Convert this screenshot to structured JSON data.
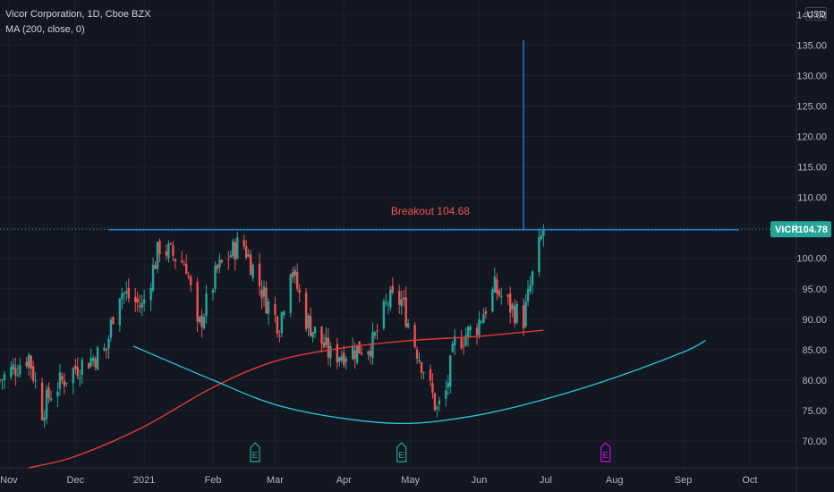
{
  "legend": {
    "title": "Vicor Corporation, 1D, Cboe BZX",
    "indicator": "MA (200, close, 0)"
  },
  "currency": "USD",
  "price_tag": {
    "symbol": "VICR",
    "value": "104.78",
    "color": "#26a69a"
  },
  "breakout": {
    "label": "Breakout 104.68",
    "level": 104.68,
    "line_color": "#2196f3",
    "label_color": "#ef5350"
  },
  "colors": {
    "up": "#26a69a",
    "down": "#ef5350",
    "ma": "#e53935",
    "cup": "#26c6da",
    "earnings_past": "#26a69a",
    "earnings_future": "#c511e0"
  },
  "chart_data": {
    "type": "candlestick",
    "x_ticks": [
      "Nov",
      "Dec",
      "2021",
      "Feb",
      "Mar",
      "Apr",
      "May",
      "Jun",
      "Jul",
      "Aug",
      "Sep",
      "Oct"
    ],
    "y_ticks": [
      "70.00",
      "75.00",
      "80.00",
      "85.00",
      "90.00",
      "95.00",
      "100.00",
      "105.00",
      "110.00",
      "115.00",
      "120.00",
      "125.00",
      "130.00",
      "135.00",
      "140.00"
    ],
    "ylim": [
      65.6,
      142.4
    ],
    "x_domain": [
      "2020-10-28",
      "2021-10-22"
    ],
    "series": [
      {
        "name": "VICR",
        "ohlc_path_close": [
          [
            "2020-10-28",
            80
          ],
          [
            "2020-11-10",
            84
          ],
          [
            "2020-11-16",
            75
          ],
          [
            "2020-11-20",
            78
          ],
          [
            "2020-12-01",
            82
          ],
          [
            "2020-12-15",
            85
          ],
          [
            "2020-12-20",
            95
          ],
          [
            "2020-12-31",
            92
          ],
          [
            "2021-01-08",
            102
          ],
          [
            "2021-01-20",
            99
          ],
          [
            "2021-01-25",
            88
          ],
          [
            "2021-02-03",
            98
          ],
          [
            "2021-02-14",
            103
          ],
          [
            "2021-02-25",
            93
          ],
          [
            "2021-03-03",
            89
          ],
          [
            "2021-03-08",
            99
          ],
          [
            "2021-03-15",
            90
          ],
          [
            "2021-03-26",
            84
          ],
          [
            "2021-04-06",
            85
          ],
          [
            "2021-04-14",
            86
          ],
          [
            "2021-04-21",
            93
          ],
          [
            "2021-04-27",
            93
          ],
          [
            "2021-05-03",
            86
          ],
          [
            "2021-05-07",
            82
          ],
          [
            "2021-05-13",
            75
          ],
          [
            "2021-05-17",
            78
          ],
          [
            "2021-05-21",
            86
          ],
          [
            "2021-05-31",
            89
          ],
          [
            "2021-06-08",
            95
          ],
          [
            "2021-06-15",
            92
          ],
          [
            "2021-06-21",
            90
          ],
          [
            "2021-06-25",
            97
          ],
          [
            "2021-06-30",
            104.8
          ]
        ]
      },
      {
        "name": "MA (200, close, 0)",
        "values": [
          [
            "2020-11-10",
            65.6
          ],
          [
            "2020-12-01",
            67.5
          ],
          [
            "2020-12-31",
            72.2
          ],
          [
            "2021-02-01",
            78.8
          ],
          [
            "2021-03-01",
            83.1
          ],
          [
            "2021-04-01",
            85.3
          ],
          [
            "2021-05-01",
            86.5
          ],
          [
            "2021-06-01",
            87.2
          ],
          [
            "2021-06-30",
            88.2
          ]
        ]
      },
      {
        "name": "cup",
        "values": [
          [
            "2020-12-27",
            85.6
          ],
          [
            "2021-02-01",
            80.0
          ],
          [
            "2021-03-01",
            76.0
          ],
          [
            "2021-04-01",
            73.7
          ],
          [
            "2021-05-01",
            72.9
          ],
          [
            "2021-06-01",
            74.3
          ],
          [
            "2021-07-01",
            76.9
          ],
          [
            "2021-08-01",
            80.4
          ],
          [
            "2021-09-01",
            84.6
          ],
          [
            "2021-09-11",
            86.5
          ]
        ]
      }
    ],
    "markers": [
      {
        "label": "E",
        "date": "2021-02-20",
        "kind": "past"
      },
      {
        "label": "E",
        "date": "2021-04-27",
        "kind": "past"
      },
      {
        "label": "E",
        "date": "2021-07-28",
        "kind": "future"
      }
    ],
    "vertical_line": {
      "date": "2021-06-21",
      "from": 104.68,
      "to": 135.8
    },
    "grid": true
  }
}
